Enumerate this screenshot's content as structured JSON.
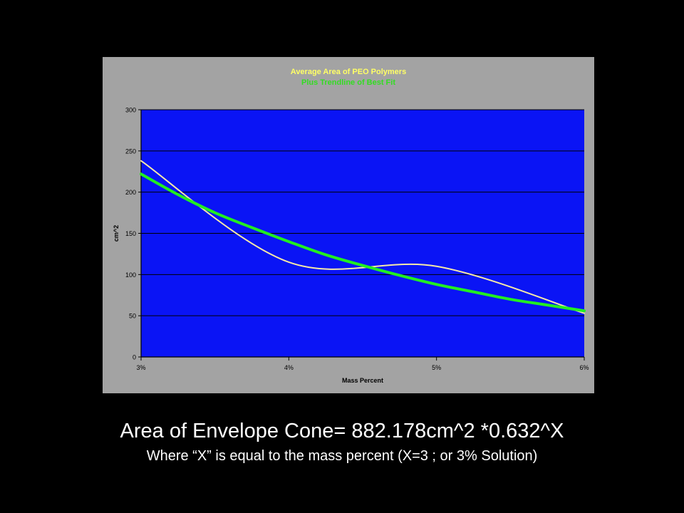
{
  "chart_data": {
    "type": "line",
    "title": "Average Area of PEO Polymers",
    "subtitle": "Plus Trendline of Best Fit",
    "xlabel": "Mass Percent",
    "ylabel": "cm^2",
    "x_ticks": [
      "3%",
      "4%",
      "5%",
      "6%"
    ],
    "y_ticks": [
      "0",
      "50",
      "100",
      "150",
      "200",
      "250",
      "300"
    ],
    "xlim": [
      3,
      6
    ],
    "ylim": [
      0,
      300
    ],
    "grid": true,
    "colors": {
      "plot_bg": "#0a14f5",
      "panel_bg": "#a3a3a3",
      "title": "#ffff66",
      "subtitle": "#33dd22",
      "data_line": "#f5e8a8",
      "trend_line": "#22ee22"
    },
    "series": [
      {
        "x": [
          3,
          4,
          5,
          6
        ],
        "y": [
          238,
          115,
          110,
          53
        ],
        "style": "smooth",
        "color": "#f5e8a8"
      },
      {
        "x": [
          3,
          3.25,
          3.5,
          3.75,
          4,
          4.25,
          4.5,
          4.75,
          5,
          5.25,
          5.5,
          5.75,
          6
        ],
        "y": [
          222,
          197,
          175,
          157,
          140,
          124,
          111,
          99,
          88,
          79,
          70,
          63,
          56
        ],
        "style": "trend",
        "color": "#22ee22"
      }
    ]
  },
  "caption": {
    "main": "Area of Envelope Cone= 882.178cm^2 *0.632^X",
    "sub": "Where “X” is equal to the mass percent (X=3 ; or 3% Solution)"
  }
}
